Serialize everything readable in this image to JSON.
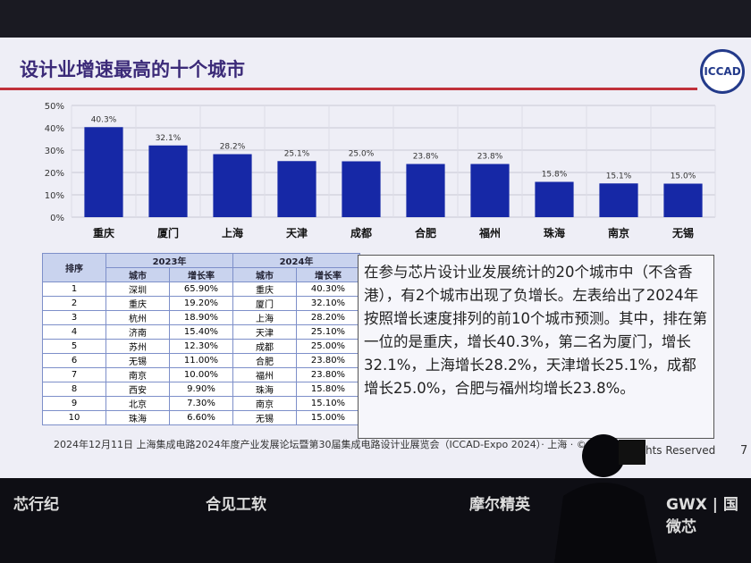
{
  "slide_title": "设计业增速最高的十个城市",
  "logo": "ICCAD",
  "chart_data": {
    "type": "bar",
    "categories": [
      "重庆",
      "厦门",
      "上海",
      "天津",
      "成都",
      "合肥",
      "福州",
      "珠海",
      "南京",
      "无锡"
    ],
    "values": [
      40.3,
      32.1,
      28.2,
      25.1,
      25.0,
      23.8,
      23.8,
      15.8,
      15.1,
      15.0
    ],
    "value_labels": [
      "40.3%",
      "32.1%",
      "28.2%",
      "25.1%",
      "25.0%",
      "23.8%",
      "23.8%",
      "15.8%",
      "15.1%",
      "15.0%"
    ],
    "color": "#1628a6",
    "ylim": [
      0,
      50
    ],
    "yticks": [
      {
        "value": 0,
        "label": "0%"
      },
      {
        "value": 10,
        "label": "10%"
      },
      {
        "value": 20,
        "label": "20%"
      },
      {
        "value": 30,
        "label": "30%"
      },
      {
        "value": 40,
        "label": "40%"
      },
      {
        "value": 50,
        "label": "50%"
      }
    ],
    "grid": true
  },
  "table": {
    "header": [
      "排序",
      "2023年",
      "2024年"
    ],
    "subheader": [
      "城市",
      "增长率",
      "城市",
      "增长率"
    ],
    "rows": [
      [
        "1",
        "深圳",
        "65.90%",
        "重庆",
        "40.30%"
      ],
      [
        "2",
        "重庆",
        "19.20%",
        "厦门",
        "32.10%"
      ],
      [
        "3",
        "杭州",
        "18.90%",
        "上海",
        "28.20%"
      ],
      [
        "4",
        "济南",
        "15.40%",
        "天津",
        "25.10%"
      ],
      [
        "5",
        "苏州",
        "12.30%",
        "成都",
        "25.00%"
      ],
      [
        "6",
        "无锡",
        "11.00%",
        "合肥",
        "23.80%"
      ],
      [
        "7",
        "南京",
        "10.00%",
        "福州",
        "23.80%"
      ],
      [
        "8",
        "西安",
        "9.90%",
        "珠海",
        "15.80%"
      ],
      [
        "9",
        "北京",
        "7.30%",
        "南京",
        "15.10%"
      ],
      [
        "10",
        "珠海",
        "6.60%",
        "无锡",
        "15.00%"
      ]
    ]
  },
  "paragraph": "在参与芯片设计业发展统计的20个城市中（不含香港），有2个城市出现了负增长。左表给出了2024年按照增长速度排列的前10个城市预测。其中，排在第一位的是重庆，增长40.3%，第二名为厦门，增长32.1%，上海增长28.2%，天津增长25.1%，成都增长25.0%，合肥与福州均增长23.8%。",
  "footer": "2024年12月11日 上海集成电路2024年度产业发展论坛暨第30届集成电路设计业展览会（ICCAD-Expo 2024）· 上海 · © 2",
  "footer_tail": "hts Reserved",
  "page_number": "7",
  "sponsors": [
    "芯行纪",
    "合见工软",
    "摩尔精英",
    "GWX | 国微芯"
  ]
}
